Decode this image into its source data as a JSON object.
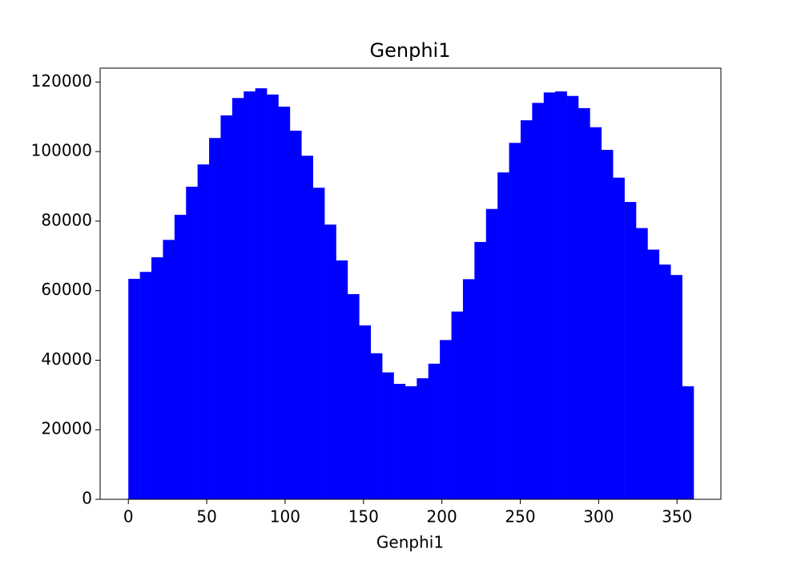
{
  "chart_data": {
    "type": "histogram",
    "title": "Genphi1",
    "x_label": "Genphi1",
    "color": "#0000ff",
    "bins": [
      0,
      7.36,
      14.72,
      22.08,
      29.44,
      36.8,
      44.16,
      51.52,
      58.88,
      66.24,
      73.6,
      80.96,
      88.32,
      95.68,
      103.04,
      110.4,
      117.76,
      125.12,
      132.48,
      139.84,
      147.2,
      154.56,
      161.92,
      169.28,
      176.64,
      184,
      191.36,
      198.72,
      206.08,
      213.44,
      220.8,
      228.16,
      235.52,
      242.88,
      250.24,
      257.6,
      264.96,
      272.32,
      279.68,
      287.04,
      294.4,
      301.76,
      309.12,
      316.48,
      323.84,
      331.2,
      338.56,
      345.92,
      353.28,
      360.64
    ],
    "values": [
      63400,
      65400,
      69600,
      74600,
      81800,
      89900,
      96300,
      103900,
      110400,
      115400,
      117300,
      118200,
      116400,
      112900,
      106000,
      98800,
      89600,
      79000,
      68700,
      59000,
      50000,
      42000,
      36500,
      33200,
      32500,
      34800,
      39000,
      45800,
      54000,
      63300,
      74000,
      83500,
      94000,
      102500,
      109000,
      114000,
      117000,
      117300,
      116000,
      112500,
      107000,
      100500,
      92500,
      85500,
      78000,
      71800,
      67500,
      64500,
      32500
    ],
    "xlim": [
      -18,
      378
    ],
    "ylim": [
      0,
      124000
    ],
    "xticks": [
      0,
      50,
      100,
      150,
      200,
      250,
      300,
      350
    ],
    "yticks": [
      0,
      20000,
      40000,
      60000,
      80000,
      100000,
      120000
    ]
  }
}
